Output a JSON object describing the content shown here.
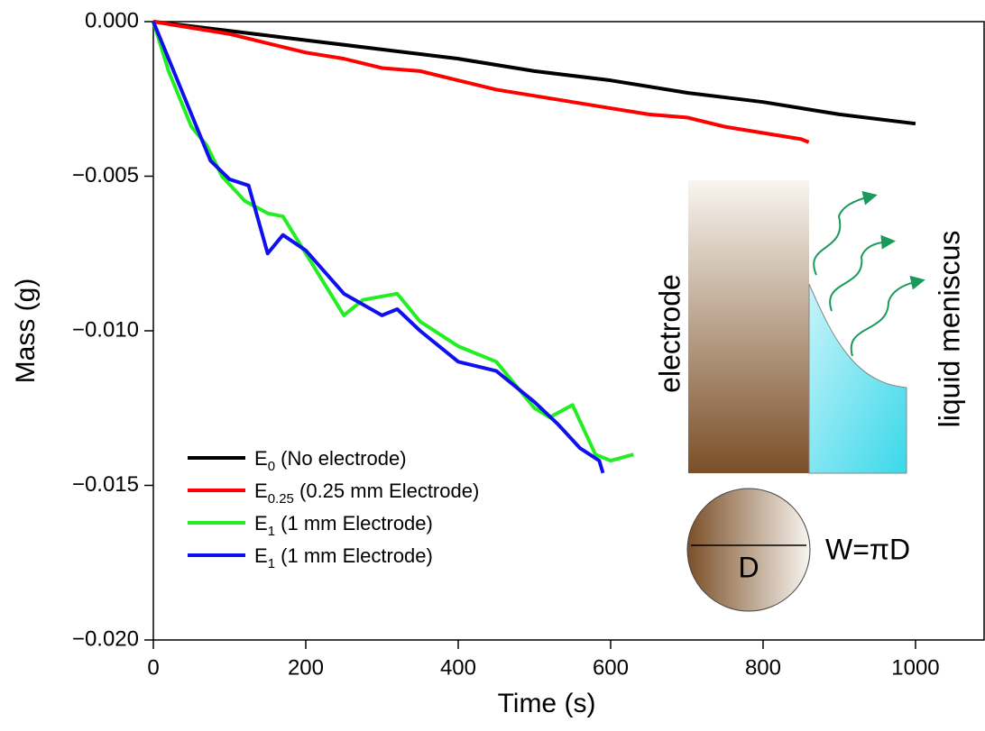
{
  "chart_data": {
    "type": "line",
    "x_label": "Time (s)",
    "y_label": "Mass (g)",
    "xlim": [
      0,
      1090
    ],
    "ylim": [
      -0.02,
      0
    ],
    "xticks": [
      0,
      200,
      400,
      600,
      800,
      1000
    ],
    "yticks": [
      {
        "value": 0,
        "label": "0.000"
      },
      {
        "value": -0.005,
        "label": "−0.005"
      },
      {
        "value": -0.01,
        "label": "−0.010"
      },
      {
        "value": -0.015,
        "label": "−0.015"
      },
      {
        "value": -0.02,
        "label": "−0.020"
      }
    ],
    "legend": "lower left",
    "series": [
      {
        "name": "E0 (No electrode)",
        "color": "#000000",
        "x": [
          0,
          100,
          200,
          300,
          400,
          500,
          600,
          700,
          800,
          900,
          1000
        ],
        "values": [
          0,
          -0.0003,
          -0.0006,
          -0.0009,
          -0.0012,
          -0.0016,
          -0.0019,
          -0.0023,
          -0.0026,
          -0.003,
          -0.0033
        ]
      },
      {
        "name": "E0.25 (0.25 mm Electrode)",
        "color": "#ff0000",
        "x": [
          0,
          50,
          100,
          150,
          200,
          250,
          300,
          350,
          400,
          450,
          500,
          550,
          600,
          650,
          700,
          750,
          800,
          850,
          860
        ],
        "values": [
          0,
          -0.0002,
          -0.0004,
          -0.0007,
          -0.001,
          -0.0012,
          -0.0015,
          -0.0016,
          -0.0019,
          -0.0022,
          -0.0024,
          -0.0026,
          -0.0028,
          -0.003,
          -0.0031,
          -0.0034,
          -0.0036,
          -0.0038,
          -0.0039
        ]
      },
      {
        "name": "E1 (1 mm Electrode)",
        "color": "#22ee22",
        "x": [
          0,
          20,
          50,
          70,
          90,
          120,
          150,
          170,
          200,
          250,
          275,
          320,
          350,
          400,
          450,
          500,
          520,
          550,
          580,
          600,
          630
        ],
        "values": [
          0,
          -0.0016,
          -0.0034,
          -0.004,
          -0.005,
          -0.0058,
          -0.0062,
          -0.0063,
          -0.0075,
          -0.0095,
          -0.009,
          -0.0088,
          -0.0097,
          -0.0105,
          -0.011,
          -0.0125,
          -0.0128,
          -0.0124,
          -0.014,
          -0.0142,
          -0.014
        ]
      },
      {
        "name": "E1 (1 mm Electrode)",
        "color": "#1010ee",
        "x": [
          0,
          20,
          50,
          75,
          100,
          125,
          150,
          170,
          200,
          250,
          300,
          320,
          350,
          400,
          450,
          500,
          530,
          560,
          585,
          590
        ],
        "values": [
          0,
          -0.0012,
          -0.003,
          -0.0045,
          -0.0051,
          -0.0053,
          -0.0075,
          -0.0069,
          -0.0074,
          -0.0088,
          -0.0095,
          -0.0093,
          -0.01,
          -0.011,
          -0.0113,
          -0.0123,
          -0.013,
          -0.0138,
          -0.0142,
          -0.0146
        ]
      }
    ],
    "annotations": {
      "electrode": "electrode",
      "meniscus": "liquid meniscus",
      "diameter": "D",
      "width": "W=πD"
    }
  }
}
